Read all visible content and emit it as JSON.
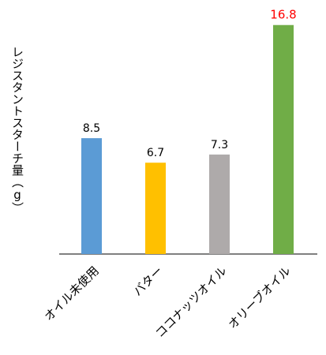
{
  "chart_data": {
    "type": "bar",
    "title": "",
    "xlabel": "",
    "ylabel": "レジスタントスターチ量（g）",
    "categories": [
      "オイル未使用",
      "バター",
      "ココナッツオイル",
      "オリーブオイル"
    ],
    "values": [
      8.5,
      6.7,
      7.3,
      16.8
    ],
    "value_labels": [
      "8.5",
      "6.7",
      "7.3",
      "16.8"
    ],
    "colors": [
      "#5b9bd5",
      "#ffc000",
      "#aeaaaa",
      "#70ad47"
    ],
    "label_colors": [
      "#000000",
      "#000000",
      "#000000",
      "#ff0000"
    ],
    "ylim": [
      0,
      18
    ],
    "grid": false,
    "legend": "none"
  }
}
